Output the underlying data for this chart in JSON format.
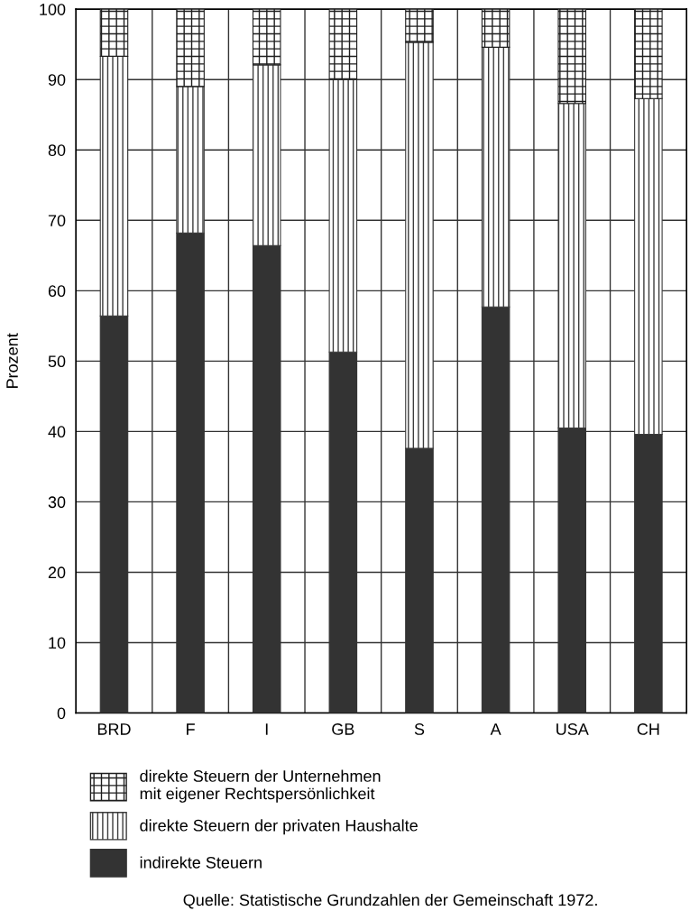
{
  "chart_data": {
    "type": "bar",
    "stacked": true,
    "ylabel": "Prozent",
    "categories": [
      "BRD",
      "F",
      "I",
      "GB",
      "S",
      "A",
      "USA",
      "CH"
    ],
    "series": [
      {
        "name": "indirekte Steuern",
        "color": "#333333",
        "values": [
          56.4,
          68.2,
          66.4,
          51.3,
          37.6,
          57.7,
          40.5,
          39.6
        ]
      },
      {
        "name": "direkte Steuern der privaten Haushalte",
        "color": "#3c3c3c",
        "values": [
          36.9,
          20.8,
          25.7,
          38.7,
          57.7,
          36.9,
          46.1,
          47.7
        ]
      },
      {
        "name": "direkte Steuern der Unternehmen\nmit eigener Rechtspersönlichkeit",
        "color": "#1e1e1e",
        "values": [
          6.7,
          11.0,
          7.9,
          10.0,
          4.7,
          5.4,
          13.4,
          12.7
        ]
      }
    ],
    "ylim": [
      0,
      100
    ],
    "yticks": [
      0,
      10,
      20,
      30,
      40,
      50,
      60,
      70,
      80,
      90,
      100
    ],
    "grid": true,
    "legend": "bottom",
    "annotations": [
      "Quelle: Statistische Grundzahlen der Gemeinschaft 1972."
    ]
  }
}
